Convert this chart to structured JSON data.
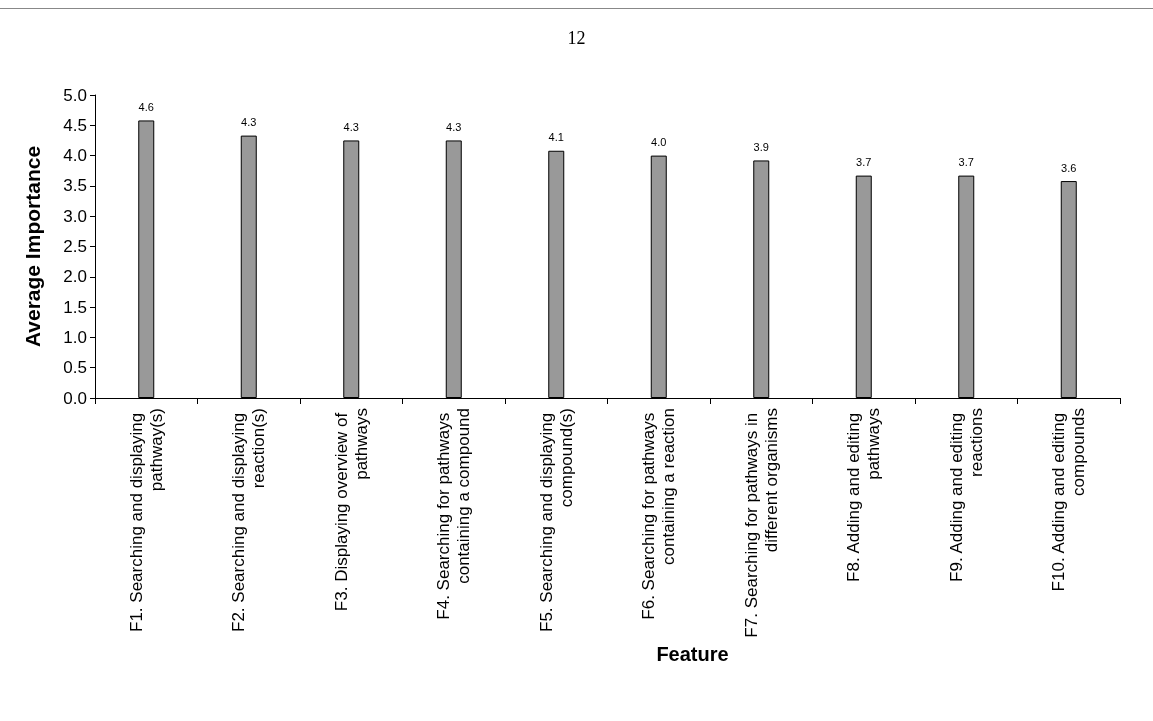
{
  "chart_data": {
    "type": "bar",
    "ylabel": "Average Importance",
    "xlabel": "Feature",
    "annotations": [
      "12"
    ],
    "categories": [
      "F1. Searching and displaying pathway(s)",
      "F2. Searching and displaying reaction(s)",
      "F3. Displaying overview of pathways",
      "F4. Searching for pathways containing a compound",
      "F5. Searching and displaying compound(s)",
      "F6. Searching for pathways containing a reaction",
      "F7. Searching for pathways in different organisms",
      "F8. Adding and editing pathways",
      "F9. Adding and editing reactions",
      "F10. Adding and editing compounds"
    ],
    "values": [
      4.58,
      4.33,
      4.25,
      4.25,
      4.08,
      4.0,
      3.92,
      3.67,
      3.67,
      3.58
    ],
    "value_labels": [
      "4.6",
      "4.3",
      "4.3",
      "4.3",
      "4.1",
      "4.0",
      "3.9",
      "3.7",
      "3.7",
      "3.6"
    ],
    "color": "#999999",
    "ylim": [
      0,
      5
    ],
    "yticks": [
      {
        "value": 0,
        "label": "0.0"
      },
      {
        "value": 0.5,
        "label": "0.5"
      },
      {
        "value": 1,
        "label": "1.0"
      },
      {
        "value": 1.5,
        "label": "1.5"
      },
      {
        "value": 2,
        "label": "2.0"
      },
      {
        "value": 2.5,
        "label": "2.5"
      },
      {
        "value": 3,
        "label": "3.0"
      },
      {
        "value": 3.5,
        "label": "3.5"
      },
      {
        "value": 4,
        "label": "4.0"
      },
      {
        "value": 4.5,
        "label": "4.5"
      },
      {
        "value": 5,
        "label": "5.0"
      }
    ],
    "grid": false
  }
}
